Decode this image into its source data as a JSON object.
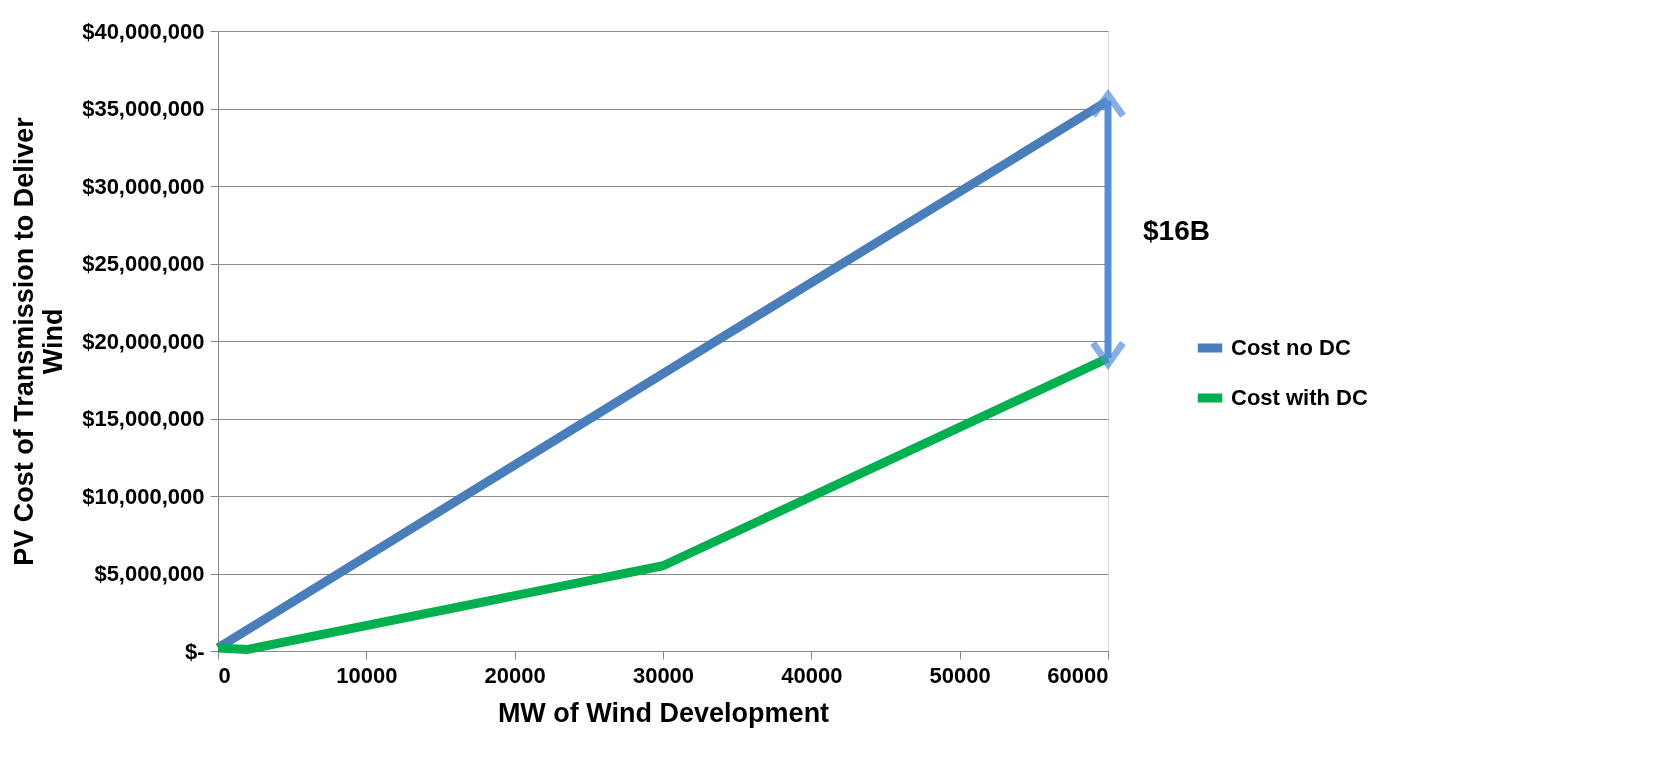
{
  "chart_data": {
    "type": "line",
    "xlabel": "MW of Wind Development",
    "ylabel": "PV Cost of Transmission to Deliver Wind",
    "series": [
      {
        "name": "Cost no DC",
        "color": "#4a7ebb",
        "x": [
          0,
          30000,
          60000
        ],
        "values": [
          200000,
          17900000,
          35500000
        ]
      },
      {
        "name": "Cost with DC",
        "color": "#00b050",
        "x": [
          0,
          2000,
          30000,
          60000
        ],
        "values": [
          200000,
          100000,
          5500000,
          18900000
        ]
      }
    ],
    "xlim": [
      0,
      60000
    ],
    "xticks": [
      0,
      10000,
      20000,
      30000,
      40000,
      50000,
      60000
    ],
    "ylim": [
      0,
      40000000
    ],
    "yticks": [
      {
        "value": 0,
        "label": "$-"
      },
      {
        "value": 5000000,
        "label": "$5,000,000"
      },
      {
        "value": 10000000,
        "label": "$10,000,000"
      },
      {
        "value": 15000000,
        "label": "$15,000,000"
      },
      {
        "value": 20000000,
        "label": "$20,000,000"
      },
      {
        "value": 25000000,
        "label": "$25,000,000"
      },
      {
        "value": 30000000,
        "label": "$30,000,000"
      },
      {
        "value": 35000000,
        "label": "$35,000,000"
      },
      {
        "value": 40000000,
        "label": "$40,000,000"
      }
    ],
    "annotations": [
      "$16B"
    ],
    "grid": "y",
    "legend": "right",
    "marker": "none",
    "line_style": "solid"
  }
}
